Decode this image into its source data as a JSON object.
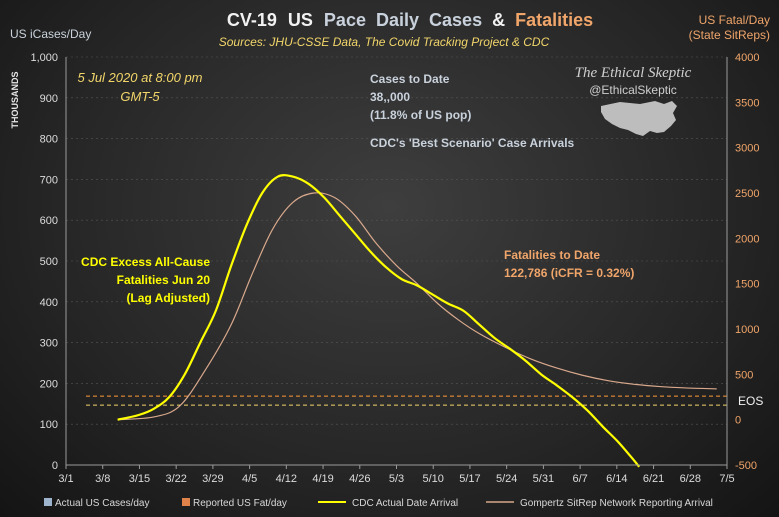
{
  "chart_data": {
    "type": "bar",
    "title_parts": [
      "CV-19",
      "US",
      "Pace",
      "Daily",
      "Cases",
      "&",
      "Fatalities"
    ],
    "subtitle": "Sources: JHU-CSSE Data, The Covid Tracking Project & CDC",
    "ylabel_left": "US iCases/Day",
    "ylabel_left_units": "THOUSANDS",
    "ylabel_right_line1": "US Fatal/Day",
    "ylabel_right_line2": "(State SitReps)",
    "left_ticks": [
      "0",
      "100",
      "200",
      "300",
      "400",
      "500",
      "600",
      "700",
      "800",
      "900",
      "1,000"
    ],
    "left_ylim": [
      0,
      1000
    ],
    "right_ticks": [
      "-500",
      "0",
      "500",
      "1000",
      "1500",
      "2000",
      "2500",
      "3000",
      "3500",
      "4000"
    ],
    "right_ylim": [
      -500,
      4000
    ],
    "x_ticks": [
      "3/1",
      "3/8",
      "3/15",
      "3/22",
      "3/29",
      "4/5",
      "4/12",
      "4/19",
      "4/26",
      "5/3",
      "5/10",
      "5/17",
      "5/24",
      "5/31",
      "6/7",
      "6/14",
      "6/21",
      "6/28",
      "7/5"
    ],
    "date_stamp_line1": "5 Jul 2020 at 8:00 pm",
    "date_stamp_line2": "GMT-5",
    "watermark_name": "The Ethical Skeptic",
    "watermark_handle": "@EthicalSkeptic",
    "cases_title": "Cases to Date",
    "cases_value": "38,,000",
    "cases_pct": "(11.8% of US pop)",
    "cdc_best": "CDC's 'Best Scenario' Case Arrivals",
    "excess_line1": "CDC Excess All-Cause",
    "excess_line2": "Fatalities Jun 20",
    "excess_line3": "(Lag Adjusted)",
    "fatal_title": "Fatalities to Date",
    "fatal_value": "122,786   (iCFR = 0.32%)",
    "eos_label": "EOS",
    "legend": [
      "Actual US Cases/day",
      "Reported US Fat/day",
      "CDC Actual Date Arrival",
      "Gompertz SitRep Network Reporting Arrival"
    ],
    "colors": {
      "cases": "#9db4cc",
      "fatalities": "#e0834a",
      "cdc_line": "#ffff00",
      "gompertz": "#d8a88c",
      "title_accent": "#f0a56a",
      "text_light": "#c9d2dc",
      "date_text": "#f2d66a"
    },
    "start_date": "2020-02-29",
    "series": [
      {
        "name": "Actual US Cases/day (thousands)",
        "axis": "left",
        "values": [
          0,
          0,
          0,
          0,
          0,
          0,
          0,
          0,
          0,
          0,
          0,
          0,
          0,
          0,
          0,
          0,
          0,
          0,
          0,
          0,
          0,
          0,
          0,
          0,
          0,
          0,
          0,
          0,
          0,
          0,
          0,
          0,
          0,
          0,
          0,
          0,
          0,
          0,
          0,
          0,
          0,
          0,
          0,
          0,
          0,
          0,
          0,
          0,
          0,
          0,
          0,
          0,
          0,
          0,
          0,
          0,
          0,
          0,
          0,
          0,
          0,
          0,
          0,
          0,
          0,
          0,
          0,
          0,
          0,
          0,
          0,
          0,
          0,
          0,
          0,
          0,
          0,
          0,
          0,
          0,
          0,
          0,
          0,
          0,
          0,
          0,
          0,
          0,
          0,
          0,
          0,
          0,
          0,
          0,
          0,
          0,
          0,
          0,
          0,
          0,
          0,
          0,
          0,
          0,
          0,
          0,
          0,
          0,
          0,
          0,
          0,
          0,
          0,
          0,
          0,
          0,
          0,
          0,
          0,
          0,
          0,
          0,
          0,
          0,
          0,
          0,
          0,
          0
        ]
      },
      {
        "name": "Reported US Fat/day",
        "axis": "right",
        "values": [
          0,
          0,
          0,
          0,
          0,
          0,
          0,
          0,
          0,
          0,
          0,
          0,
          0,
          0,
          0,
          0,
          0,
          0,
          0,
          0,
          0,
          0,
          0,
          0,
          0,
          0,
          0,
          0,
          0,
          0,
          0,
          0,
          0,
          0,
          0,
          0,
          0,
          0,
          0,
          0,
          0,
          0,
          0,
          0,
          0,
          0,
          0,
          0,
          0,
          0,
          0,
          0,
          0,
          0,
          0,
          0,
          0,
          0,
          0,
          0,
          0,
          0,
          0,
          0,
          0,
          0,
          0,
          0,
          0,
          0,
          0,
          0,
          0,
          0,
          0,
          0,
          0,
          0,
          0,
          0,
          0,
          0,
          0,
          0,
          0,
          0,
          0,
          0,
          0,
          0,
          0,
          0,
          0,
          0,
          0,
          0,
          0,
          0,
          0,
          0,
          0,
          0,
          0,
          0,
          0,
          0,
          0,
          0,
          0,
          0,
          0,
          0,
          0,
          0,
          0,
          0,
          0,
          0,
          0,
          0,
          0,
          0,
          0,
          0,
          0,
          0,
          0,
          0
        ]
      },
      {
        "name": "CDC Actual Date Arrival",
        "axis": "right",
        "points": [
          [
            10,
            0
          ],
          [
            14,
            50
          ],
          [
            17,
            120
          ],
          [
            20,
            250
          ],
          [
            23,
            500
          ],
          [
            26,
            850
          ],
          [
            29,
            1200
          ],
          [
            32,
            1700
          ],
          [
            35,
            2150
          ],
          [
            38,
            2500
          ],
          [
            41,
            2680
          ],
          [
            44,
            2680
          ],
          [
            47,
            2600
          ],
          [
            50,
            2450
          ],
          [
            53,
            2250
          ],
          [
            56,
            2050
          ],
          [
            59,
            1850
          ],
          [
            62,
            1680
          ],
          [
            65,
            1550
          ],
          [
            68,
            1480
          ],
          [
            71,
            1380
          ],
          [
            74,
            1280
          ],
          [
            77,
            1200
          ],
          [
            80,
            1050
          ],
          [
            83,
            900
          ],
          [
            86,
            780
          ],
          [
            89,
            650
          ],
          [
            92,
            500
          ],
          [
            95,
            380
          ],
          [
            98,
            250
          ],
          [
            101,
            100
          ],
          [
            104,
            -80
          ],
          [
            107,
            -250
          ],
          [
            110,
            -450
          ],
          [
            111,
            -520
          ]
        ]
      },
      {
        "name": "Gompertz SitRep Network Reporting Arrival",
        "axis": "right",
        "points": [
          [
            10,
            0
          ],
          [
            17,
            30
          ],
          [
            22,
            150
          ],
          [
            27,
            550
          ],
          [
            32,
            1050
          ],
          [
            36,
            1600
          ],
          [
            40,
            2100
          ],
          [
            44,
            2400
          ],
          [
            48,
            2500
          ],
          [
            52,
            2450
          ],
          [
            56,
            2250
          ],
          [
            60,
            1950
          ],
          [
            64,
            1700
          ],
          [
            68,
            1500
          ],
          [
            72,
            1280
          ],
          [
            76,
            1100
          ],
          [
            80,
            950
          ],
          [
            85,
            800
          ],
          [
            90,
            670
          ],
          [
            95,
            570
          ],
          [
            100,
            490
          ],
          [
            105,
            430
          ],
          [
            110,
            390
          ],
          [
            115,
            365
          ],
          [
            120,
            350
          ],
          [
            126,
            340
          ]
        ]
      }
    ],
    "reference_lines": [
      {
        "label": "EOS",
        "axis": "right",
        "value": 160
      },
      {
        "label": "CDC Excess All-Cause Fatalities Jun 20",
        "axis": "right",
        "value": 260
      }
    ]
  }
}
